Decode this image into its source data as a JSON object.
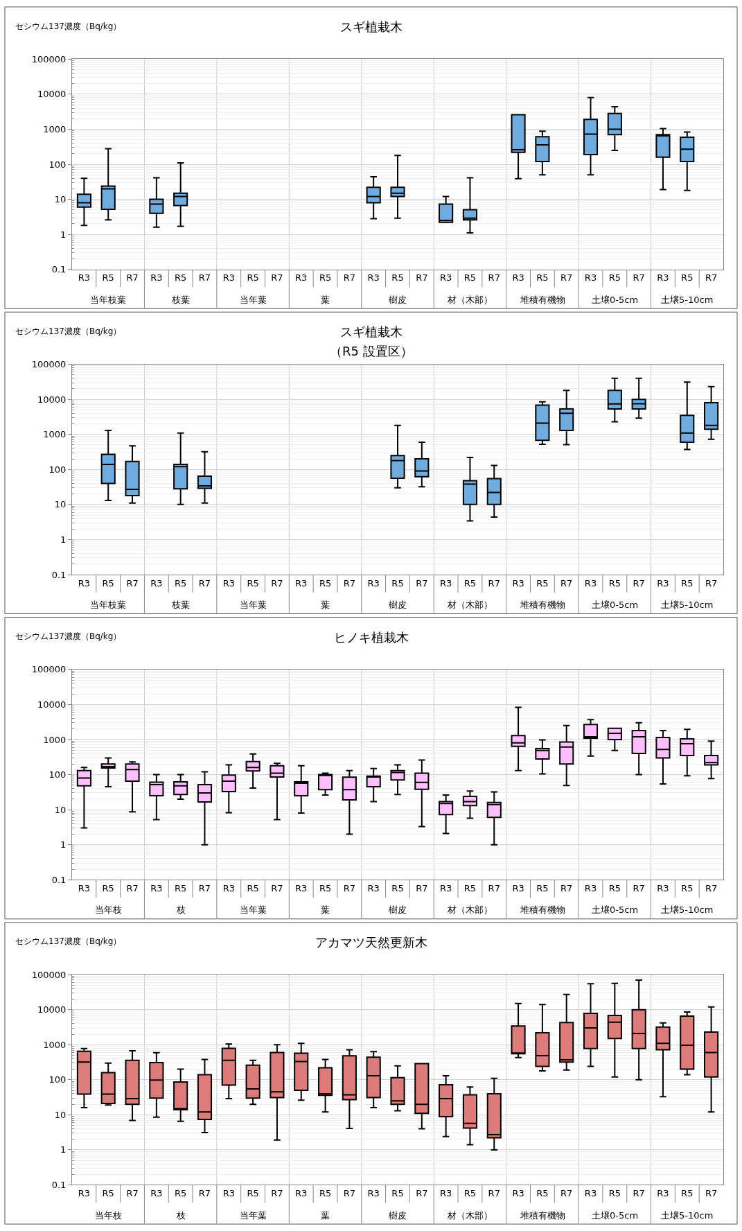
{
  "chart_data": [
    {
      "type": "box",
      "title": "スギ植栽木",
      "ylabel": "セシウム137濃度（Bq/kg）",
      "categories": [
        "R3",
        "R5",
        "R7",
        "R3",
        "R5",
        "R7",
        "R3",
        "R5",
        "R7",
        "R3",
        "R5",
        "R7",
        "R3",
        "R5",
        "R7",
        "R3",
        "R5",
        "R7",
        "R3",
        "R5",
        "R7",
        "R3",
        "R5",
        "R7",
        "R3",
        "R5",
        "R7"
      ],
      "annotations": [
        "当年枝葉",
        "枝葉",
        "当年葉",
        "葉",
        "樹皮",
        "材（木部）",
        "堆積有機物",
        "土壌0-5cm",
        "土壌5-10cm"
      ],
      "color": "#6fabdc",
      "boxes": [
        {
          "low": 1.8,
          "q1": 6,
          "median": 8,
          "q3": 14,
          "high": 40
        },
        {
          "low": 2.6,
          "q1": 5.2,
          "median": 20,
          "q3": 24,
          "high": 280
        },
        null,
        {
          "low": 1.6,
          "q1": 4,
          "median": 7.3,
          "q3": 10,
          "high": 41
        },
        {
          "low": 1.7,
          "q1": 6.7,
          "median": 12,
          "q3": 15,
          "high": 110
        },
        null,
        null,
        null,
        null,
        null,
        null,
        null,
        {
          "low": 2.8,
          "q1": 8,
          "median": 12,
          "q3": 22,
          "high": 44
        },
        {
          "low": 2.9,
          "q1": 12,
          "median": 15,
          "q3": 22,
          "high": 180
        },
        null,
        {
          "low": 2.2,
          "q1": 2.2,
          "median": 2.5,
          "q3": 7.3,
          "high": 12
        },
        {
          "low": 1.1,
          "q1": 2.6,
          "median": 2.9,
          "q3": 5.1,
          "high": 41
        },
        null,
        {
          "low": 39,
          "q1": 220,
          "median": 260,
          "q3": 2600,
          "high": 2600
        },
        {
          "low": 50,
          "q1": 120,
          "median": 360,
          "q3": 610,
          "high": 880
        },
        null,
        {
          "low": 50,
          "q1": 190,
          "median": 730,
          "q3": 1900,
          "high": 8000
        },
        {
          "low": 250,
          "q1": 700,
          "median": 1000,
          "q3": 2800,
          "high": 4400
        },
        null,
        {
          "low": 19,
          "q1": 160,
          "median": 650,
          "q3": 700,
          "high": 1050
        },
        {
          "low": 18,
          "q1": 120,
          "median": 270,
          "q3": 590,
          "high": 830
        },
        null
      ],
      "ylim": [
        0.1,
        100000
      ],
      "yticks": [
        0.1,
        1,
        10,
        100,
        1000,
        10000,
        100000
      ],
      "log": true,
      "grid": true
    },
    {
      "type": "box",
      "title": "スギ植栽木",
      "subtitle": "（R5 設置区）",
      "ylabel": "セシウム137濃度（Bq/kg）",
      "categories": [
        "R3",
        "R5",
        "R7",
        "R3",
        "R5",
        "R7",
        "R3",
        "R5",
        "R7",
        "R3",
        "R5",
        "R7",
        "R3",
        "R5",
        "R7",
        "R3",
        "R5",
        "R7",
        "R3",
        "R5",
        "R7",
        "R3",
        "R5",
        "R7",
        "R3",
        "R5",
        "R7"
      ],
      "annotations": [
        "当年枝葉",
        "枝葉",
        "当年葉",
        "葉",
        "樹皮",
        "材（木部）",
        "堆積有機物",
        "土壌0-5cm",
        "土壌5-10cm"
      ],
      "color": "#6fabdc",
      "boxes": [
        null,
        {
          "low": 13,
          "q1": 40,
          "median": 140,
          "q3": 270,
          "high": 1300
        },
        {
          "low": 11,
          "q1": 18,
          "median": 27,
          "q3": 170,
          "high": 470
        },
        null,
        {
          "low": 10,
          "q1": 28,
          "median": 120,
          "q3": 140,
          "high": 1100
        },
        {
          "low": 11,
          "q1": 29,
          "median": 34,
          "q3": 64,
          "high": 320
        },
        null,
        null,
        null,
        null,
        null,
        null,
        null,
        {
          "low": 30,
          "q1": 56,
          "median": 180,
          "q3": 250,
          "high": 1800
        },
        {
          "low": 32,
          "q1": 62,
          "median": 90,
          "q3": 200,
          "high": 600
        },
        null,
        {
          "low": 3.4,
          "q1": 10,
          "median": 38,
          "q3": 48,
          "high": 220
        },
        {
          "low": 4.4,
          "q1": 10,
          "median": 22,
          "q3": 55,
          "high": 130
        },
        null,
        {
          "low": 520,
          "q1": 680,
          "median": 2100,
          "q3": 6800,
          "high": 8500
        },
        {
          "low": 510,
          "q1": 1300,
          "median": 4000,
          "q3": 5300,
          "high": 18000
        },
        null,
        {
          "low": 2300,
          "q1": 5300,
          "median": 7400,
          "q3": 18000,
          "high": 40000
        },
        {
          "low": 2900,
          "q1": 5300,
          "median": 7500,
          "q3": 10000,
          "high": 40000
        },
        null,
        {
          "low": 370,
          "q1": 600,
          "median": 1100,
          "q3": 3500,
          "high": 31000
        },
        {
          "low": 730,
          "q1": 1400,
          "median": 1800,
          "q3": 8000,
          "high": 23000
        }
      ],
      "ylim": [
        0.1,
        100000
      ],
      "yticks": [
        0.1,
        1,
        10,
        100,
        1000,
        10000,
        100000
      ],
      "log": true,
      "grid": true
    },
    {
      "type": "box",
      "title": "ヒノキ植栽木",
      "ylabel": "セシウム137濃度（Bq/kg）",
      "categories": [
        "R3",
        "R5",
        "R7",
        "R3",
        "R5",
        "R7",
        "R3",
        "R5",
        "R7",
        "R3",
        "R5",
        "R7",
        "R3",
        "R5",
        "R7",
        "R3",
        "R5",
        "R7",
        "R3",
        "R5",
        "R7",
        "R3",
        "R5",
        "R7",
        "R3",
        "R5",
        "R7"
      ],
      "annotations": [
        "当年枝",
        "枝",
        "当年葉",
        "葉",
        "樹皮",
        "材（木部）",
        "堆積有機物",
        "土壌0-5cm",
        "土壌5-10cm"
      ],
      "color": "#ffbfff",
      "boxes": [
        {
          "low": 3.0,
          "q1": 48,
          "median": 80,
          "q3": 130,
          "high": 160
        },
        {
          "low": 45,
          "q1": 155,
          "median": 170,
          "q3": 200,
          "high": 300
        },
        {
          "low": 8.7,
          "q1": 65,
          "median": 140,
          "q3": 200,
          "high": 230
        },
        {
          "low": 5.2,
          "q1": 25,
          "median": 52,
          "q3": 61,
          "high": 100
        },
        {
          "low": 20,
          "q1": 27,
          "median": 48,
          "q3": 62,
          "high": 100
        },
        {
          "low": 1.0,
          "q1": 16.5,
          "median": 30,
          "q3": 52,
          "high": 120
        },
        {
          "low": 8.2,
          "q1": 33,
          "median": 65,
          "q3": 97,
          "high": 190
        },
        {
          "low": 41,
          "q1": 127,
          "median": 160,
          "q3": 235,
          "high": 390
        },
        {
          "low": 5.2,
          "q1": 85,
          "median": 110,
          "q3": 180,
          "high": 210
        },
        {
          "low": 8,
          "q1": 25,
          "median": 57,
          "q3": 62,
          "high": 180
        },
        {
          "low": 26,
          "q1": 37,
          "median": 95,
          "q3": 100,
          "high": 110
        },
        {
          "low": 2.0,
          "q1": 19,
          "median": 37,
          "q3": 84,
          "high": 130
        },
        {
          "low": 17,
          "q1": 45,
          "median": 85,
          "q3": 90,
          "high": 150
        },
        {
          "low": 27,
          "q1": 70,
          "median": 115,
          "q3": 130,
          "high": 190
        },
        {
          "low": 3.3,
          "q1": 38,
          "median": 60,
          "q3": 110,
          "high": 260
        },
        {
          "low": 2.1,
          "q1": 7.2,
          "median": 15,
          "q3": 17,
          "high": 26
        },
        {
          "low": 5.7,
          "q1": 13,
          "median": 17,
          "q3": 24,
          "high": 34
        },
        {
          "low": 1.0,
          "q1": 6.0,
          "median": 14,
          "q3": 16,
          "high": 32
        },
        {
          "low": 130,
          "q1": 640,
          "median": 800,
          "q3": 1300,
          "high": 8300
        },
        {
          "low": 105,
          "q1": 280,
          "median": 490,
          "q3": 550,
          "high": 980
        },
        {
          "low": 49,
          "q1": 200,
          "median": 610,
          "q3": 850,
          "high": 2500
        },
        {
          "low": 340,
          "q1": 1100,
          "median": 1200,
          "q3": 2700,
          "high": 3700
        },
        {
          "low": 490,
          "q1": 1000,
          "median": 1500,
          "q3": 2100,
          "high": 2100
        },
        {
          "low": 100,
          "q1": 400,
          "median": 1200,
          "q3": 1800,
          "high": 3000
        },
        {
          "low": 54,
          "q1": 300,
          "median": 520,
          "q3": 1150,
          "high": 1800
        },
        {
          "low": 92,
          "q1": 350,
          "median": 760,
          "q3": 1050,
          "high": 1950
        },
        {
          "low": 77,
          "q1": 190,
          "median": 220,
          "q3": 350,
          "high": 900
        }
      ],
      "ylim": [
        0.1,
        100000
      ],
      "yticks": [
        0.1,
        1,
        10,
        100,
        1000,
        10000,
        100000
      ],
      "log": true,
      "grid": true
    },
    {
      "type": "box",
      "title": "アカマツ天然更新木",
      "ylabel": "セシウム137濃度（Bq/kg）",
      "categories": [
        "R3",
        "R5",
        "R7",
        "R3",
        "R5",
        "R7",
        "R3",
        "R5",
        "R7",
        "R3",
        "R5",
        "R7",
        "R3",
        "R5",
        "R7",
        "R3",
        "R5",
        "R7",
        "R3",
        "R5",
        "R7",
        "R3",
        "R5",
        "R7",
        "R3",
        "R5",
        "R7"
      ],
      "annotations": [
        "当年枝",
        "枝",
        "当年葉",
        "葉",
        "樹皮",
        "材（木部）",
        "堆積有機物",
        "土壌0-5cm",
        "土壌5-10cm"
      ],
      "color": "#dc7c7a",
      "boxes": [
        {
          "low": 16,
          "q1": 39,
          "median": 320,
          "q3": 650,
          "high": 780
        },
        {
          "low": 19,
          "q1": 21,
          "median": 39,
          "q3": 160,
          "high": 300
        },
        {
          "low": 6.9,
          "q1": 20,
          "median": 29,
          "q3": 360,
          "high": 670
        },
        {
          "low": 8.6,
          "q1": 30,
          "median": 98,
          "q3": 310,
          "high": 590
        },
        {
          "low": 6.5,
          "q1": 14,
          "median": 15,
          "q3": 86,
          "high": 200
        },
        {
          "low": 3.1,
          "q1": 7.4,
          "median": 12,
          "q3": 140,
          "high": 380
        },
        {
          "low": 29,
          "q1": 70,
          "median": 360,
          "q3": 790,
          "high": 1050
        },
        {
          "low": 20,
          "q1": 30,
          "median": 55,
          "q3": 260,
          "high": 360
        },
        {
          "low": 1.9,
          "q1": 31,
          "median": 45,
          "q3": 600,
          "high": 1000
        },
        {
          "low": 26,
          "q1": 50,
          "median": 330,
          "q3": 570,
          "high": 1100
        },
        {
          "low": 12,
          "q1": 36,
          "median": 40,
          "q3": 220,
          "high": 380
        },
        {
          "low": 4.1,
          "q1": 27,
          "median": 37,
          "q3": 480,
          "high": 720
        },
        {
          "low": 16,
          "q1": 31,
          "median": 130,
          "q3": 440,
          "high": 630
        },
        {
          "low": 13,
          "q1": 20,
          "median": 25,
          "q3": 115,
          "high": 250
        },
        {
          "low": 4.0,
          "q1": 11,
          "median": 20,
          "q3": 290,
          "high": 290
        },
        {
          "low": 2.4,
          "q1": 8.9,
          "median": 29,
          "q3": 72,
          "high": 130
        },
        {
          "low": 1.4,
          "q1": 4.2,
          "median": 5.7,
          "q3": 37,
          "high": 62
        },
        {
          "low": 1.0,
          "q1": 2.2,
          "median": 2.7,
          "q3": 40,
          "high": 110
        },
        {
          "low": 430,
          "q1": 550,
          "median": 560,
          "q3": 3400,
          "high": 15000
        },
        {
          "low": 180,
          "q1": 240,
          "median": 490,
          "q3": 2200,
          "high": 14000
        },
        {
          "low": 190,
          "q1": 320,
          "median": 370,
          "q3": 4300,
          "high": 27000
        },
        {
          "low": 240,
          "q1": 780,
          "median": 3000,
          "q3": 7800,
          "high": 55000
        },
        {
          "low": 120,
          "q1": 1500,
          "median": 4400,
          "q3": 6800,
          "high": 56000
        },
        {
          "low": 100,
          "q1": 780,
          "median": 2100,
          "q3": 10000,
          "high": 70000
        },
        {
          "low": 33,
          "q1": 720,
          "median": 1100,
          "q3": 3200,
          "high": 4200
        },
        {
          "low": 140,
          "q1": 200,
          "median": 970,
          "q3": 6500,
          "high": 8600
        },
        {
          "low": 12,
          "q1": 120,
          "median": 600,
          "q3": 2300,
          "high": 12000
        }
      ],
      "ylim": [
        0.1,
        100000
      ],
      "yticks": [
        0.1,
        1,
        10,
        100,
        1000,
        10000,
        100000
      ],
      "log": true,
      "grid": true
    }
  ]
}
